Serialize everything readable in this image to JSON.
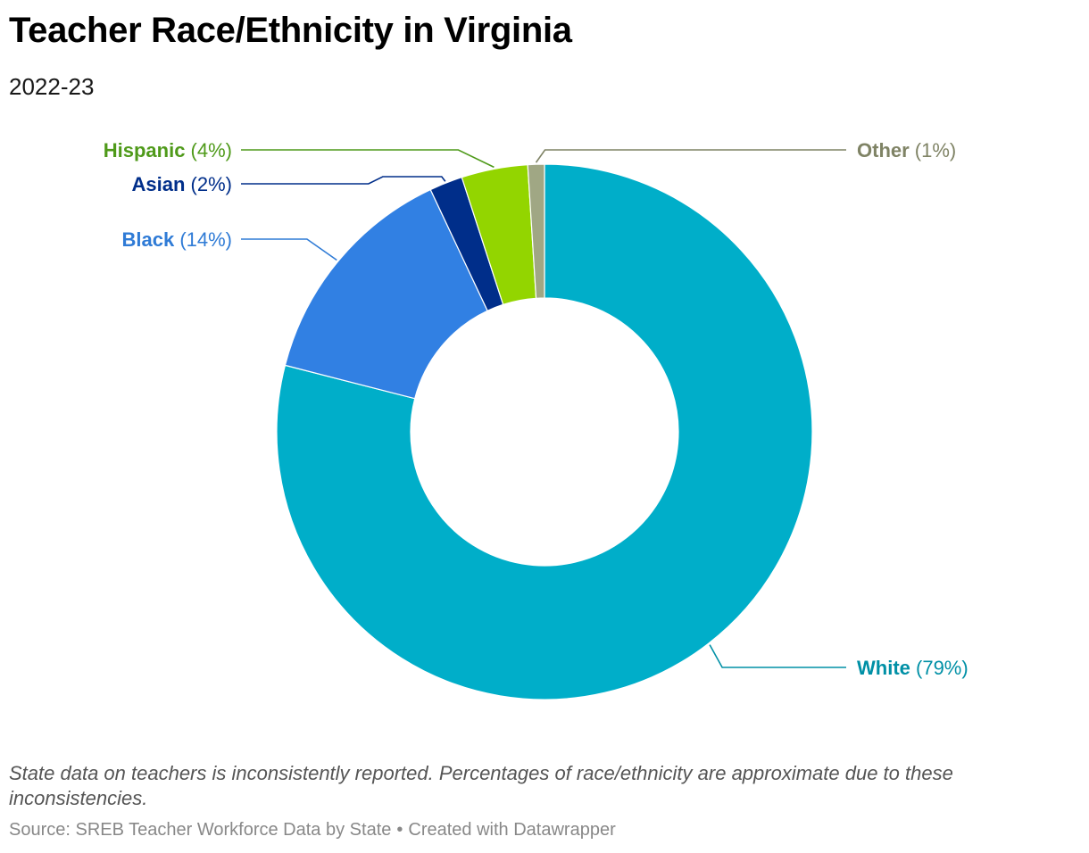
{
  "header": {
    "title": "Teacher Race/Ethnicity in Virginia",
    "subtitle": "2022-23"
  },
  "chart_data": {
    "type": "pie",
    "style": "donut",
    "start_angle_deg": 0,
    "direction": "clockwise",
    "slices": [
      {
        "name": "White",
        "value": 79,
        "label_value": "(79%)",
        "color": "#00aec9",
        "label_color": "#0090a6",
        "label_side": "right"
      },
      {
        "name": "Black",
        "value": 14,
        "label_value": "(14%)",
        "color": "#3180e3",
        "label_color": "#2f7bd6",
        "label_side": "left"
      },
      {
        "name": "Asian",
        "value": 2,
        "label_value": "(2%)",
        "color": "#002e8a",
        "label_color": "#002e8a",
        "label_side": "left"
      },
      {
        "name": "Hispanic",
        "value": 4,
        "label_value": "(4%)",
        "color": "#93d500",
        "label_color": "#4f9a1a",
        "label_side": "left"
      },
      {
        "name": "Other",
        "value": 1,
        "label_value": "(1%)",
        "color": "#a0a784",
        "label_color": "#7f8365",
        "label_side": "right"
      }
    ]
  },
  "footer": {
    "notes": "State data on teachers is inconsistently reported. Percentages of race/ethnicity are approximate due to these inconsistencies.",
    "source_label": "Source:",
    "source_text": "SREB Teacher Workforce Data by State",
    "separator": "•",
    "credit": "Created with Datawrapper"
  }
}
